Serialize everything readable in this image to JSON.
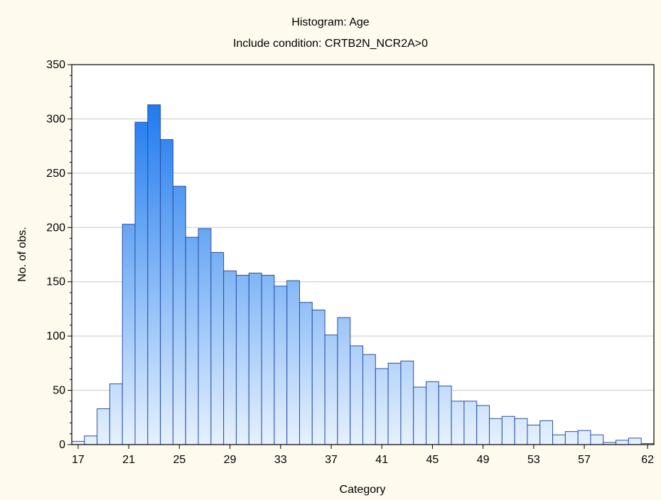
{
  "chart_data": {
    "type": "bar",
    "title": "Histogram: Age",
    "subtitle": "Include condition: CRTB2N_NCR2A>0",
    "xlabel": "Category",
    "ylabel": "No. of obs.",
    "ylim": [
      0,
      350
    ],
    "y_ticks": [
      0,
      50,
      100,
      150,
      200,
      250,
      300,
      350
    ],
    "x_tick_labels": [
      "17",
      "21",
      "25",
      "29",
      "33",
      "37",
      "41",
      "45",
      "49",
      "53",
      "57",
      "62"
    ],
    "x_tick_bins": [
      0.5,
      4.5,
      8.5,
      12.5,
      16.5,
      20.5,
      24.5,
      28.5,
      32.5,
      36.5,
      40.5,
      45.5
    ],
    "grid": true,
    "values": [
      3,
      8,
      33,
      56,
      203,
      297,
      313,
      281,
      238,
      191,
      199,
      177,
      160,
      156,
      158,
      156,
      146,
      151,
      131,
      124,
      101,
      117,
      91,
      83,
      70,
      75,
      77,
      53,
      58,
      54,
      40,
      40,
      36,
      24,
      26,
      24,
      18,
      22,
      9,
      12,
      13,
      9,
      2,
      4,
      6,
      1
    ],
    "colors": {
      "bar_light": "#e6f1fd",
      "bar_dark": "#1f7bef",
      "bar_edge": "#2a4fa5",
      "background": "#fefaee",
      "plot_background": "#ffffff",
      "grid": "#c8c8c8"
    }
  }
}
